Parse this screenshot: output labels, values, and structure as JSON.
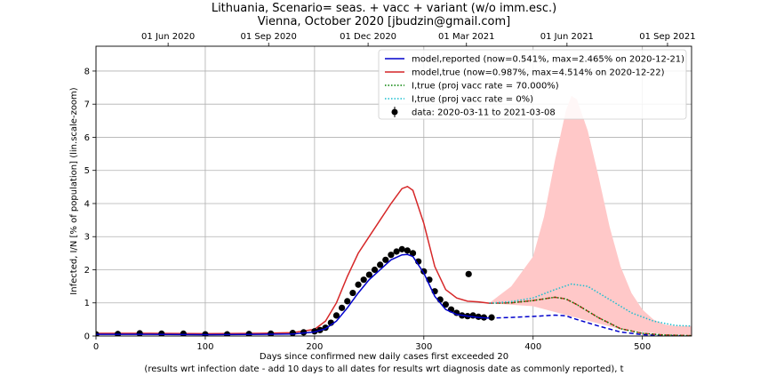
{
  "header": {
    "title_line1": "Lithuania, Scenario= seas. + vacc + variant (w/o imm.esc.)",
    "title_line2": "Vienna, October 2020 [jbudzin@gmail.com]"
  },
  "chart_data": {
    "type": "line",
    "xlabel_line1": "Days since confirmed new daily cases first exceeded 20",
    "xlabel_line2": "(results wrt infection date - add 10 days to all dates for results wrt diagnosis date as commonly reported), t",
    "ylabel": "Infected, I/N [% of population] (lin.scale-zoom)",
    "xlim": [
      0,
      545
    ],
    "ylim": [
      0,
      8.75
    ],
    "x_ticks": [
      0,
      100,
      200,
      300,
      400,
      500
    ],
    "y_ticks": [
      0,
      1,
      2,
      3,
      4,
      5,
      6,
      7,
      8
    ],
    "top_axis_ticks": [
      {
        "x": 66,
        "label": "01 Jun 2020"
      },
      {
        "x": 158,
        "label": "01 Sep 2020"
      },
      {
        "x": 249,
        "label": "01 Dec 2020"
      },
      {
        "x": 339,
        "label": "01 Mar 2021"
      },
      {
        "x": 431,
        "label": "01 Jun 2021"
      },
      {
        "x": 523,
        "label": "01 Sep 2021"
      }
    ],
    "grid": true,
    "legend_position": "top-right",
    "legend": [
      {
        "label": "model,reported (now=0.541%, max=2.465% on 2020-12-21)",
        "color": "#0000cc",
        "style": "solid"
      },
      {
        "label": "model,true (now=0.987%, max=4.514% on 2020-12-22)",
        "color": "#d62728",
        "style": "solid"
      },
      {
        "label": "I,true (proj vacc rate = 70.000%)",
        "color": "#008000",
        "style": "dotted"
      },
      {
        "label": "I,true (proj vacc rate = 0%)",
        "color": "#17becf",
        "style": "dotted"
      },
      {
        "label": "data: 2020-03-11 to 2021-03-08",
        "color": "#000000",
        "style": "marker"
      }
    ],
    "series": [
      {
        "name": "model,reported",
        "x": [
          0,
          50,
          100,
          150,
          180,
          200,
          210,
          220,
          230,
          240,
          250,
          260,
          270,
          280,
          285,
          290,
          300,
          310,
          320,
          330,
          340,
          350,
          360
        ],
        "y": [
          0.05,
          0.05,
          0.04,
          0.05,
          0.06,
          0.12,
          0.22,
          0.45,
          0.85,
          1.3,
          1.7,
          2.0,
          2.3,
          2.45,
          2.46,
          2.4,
          1.9,
          1.2,
          0.8,
          0.65,
          0.6,
          0.56,
          0.54
        ]
      },
      {
        "name": "model,reported (projection)",
        "x": [
          360,
          380,
          400,
          420,
          430,
          440,
          460,
          480,
          500,
          520,
          545
        ],
        "y": [
          0.54,
          0.56,
          0.59,
          0.63,
          0.61,
          0.5,
          0.3,
          0.12,
          0.04,
          0.015,
          0.005
        ]
      },
      {
        "name": "model,true",
        "x": [
          0,
          50,
          100,
          150,
          180,
          200,
          210,
          220,
          230,
          240,
          250,
          260,
          270,
          280,
          285,
          290,
          300,
          310,
          320,
          330,
          340,
          350,
          360
        ],
        "y": [
          0.08,
          0.08,
          0.07,
          0.08,
          0.1,
          0.2,
          0.45,
          1.0,
          1.8,
          2.5,
          3.0,
          3.5,
          4.0,
          4.45,
          4.514,
          4.4,
          3.4,
          2.1,
          1.4,
          1.15,
          1.05,
          1.03,
          0.99
        ]
      },
      {
        "name": "model,true (projection)",
        "x": [
          360,
          380,
          400,
          420,
          430,
          440,
          460,
          480,
          500,
          520,
          545
        ],
        "y": [
          0.99,
          1.0,
          1.07,
          1.17,
          1.12,
          0.95,
          0.55,
          0.22,
          0.08,
          0.03,
          0.01
        ]
      },
      {
        "name": "I,true (proj vacc rate = 70.000%)",
        "x": [
          360,
          380,
          400,
          420,
          430,
          440,
          460,
          480,
          500,
          520,
          545
        ],
        "y": [
          0.99,
          1.0,
          1.07,
          1.17,
          1.12,
          0.95,
          0.55,
          0.22,
          0.08,
          0.03,
          0.01
        ]
      },
      {
        "name": "I,true (proj vacc rate = 0%)",
        "x": [
          360,
          380,
          400,
          420,
          435,
          450,
          470,
          490,
          510,
          530,
          545
        ],
        "y": [
          0.99,
          1.04,
          1.15,
          1.4,
          1.57,
          1.5,
          1.1,
          0.7,
          0.45,
          0.32,
          0.3
        ]
      },
      {
        "name": "projection band upper",
        "x": [
          360,
          380,
          400,
          410,
          420,
          430,
          435,
          440,
          450,
          460,
          470,
          480,
          490,
          500,
          510,
          520,
          530,
          545
        ],
        "y": [
          1.0,
          1.5,
          2.4,
          3.6,
          5.3,
          6.8,
          7.25,
          7.15,
          6.2,
          4.8,
          3.3,
          2.1,
          1.3,
          0.8,
          0.5,
          0.35,
          0.3,
          0.3
        ]
      },
      {
        "name": "projection band lower",
        "x": [
          360,
          400,
          440,
          480,
          520,
          545
        ],
        "y": [
          0.99,
          0.9,
          0.55,
          0.2,
          0.05,
          0.03
        ]
      }
    ],
    "data_points": {
      "x": [
        0,
        20,
        40,
        60,
        80,
        100,
        120,
        140,
        160,
        180,
        190,
        200,
        205,
        210,
        215,
        220,
        225,
        230,
        235,
        240,
        245,
        250,
        255,
        260,
        265,
        270,
        275,
        280,
        285,
        290,
        295,
        300,
        305,
        310,
        315,
        320,
        325,
        330,
        335,
        340,
        345,
        350,
        355,
        362
      ],
      "y": [
        0.05,
        0.06,
        0.08,
        0.07,
        0.07,
        0.05,
        0.05,
        0.06,
        0.07,
        0.09,
        0.11,
        0.14,
        0.18,
        0.25,
        0.4,
        0.62,
        0.85,
        1.05,
        1.3,
        1.55,
        1.7,
        1.85,
        2.0,
        2.15,
        2.3,
        2.45,
        2.55,
        2.62,
        2.58,
        2.5,
        2.25,
        1.95,
        1.7,
        1.35,
        1.1,
        0.95,
        0.8,
        0.7,
        0.62,
        0.6,
        0.62,
        0.58,
        0.56,
        0.56
      ],
      "outlier": {
        "x": 341,
        "y": 1.87
      }
    }
  }
}
